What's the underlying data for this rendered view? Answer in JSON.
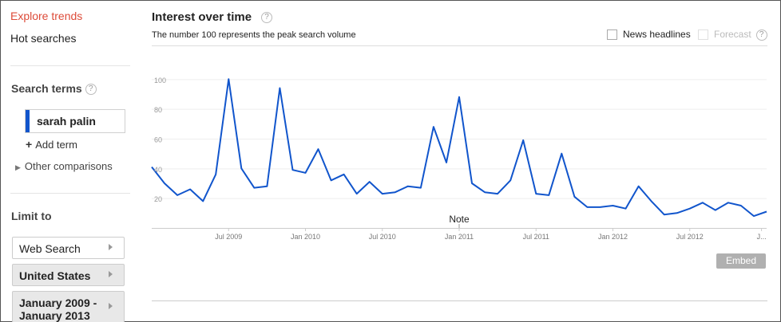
{
  "sidebar": {
    "explore_trends": "Explore trends",
    "hot_searches": "Hot searches",
    "search_terms_title": "Search terms",
    "help_mark": "?",
    "term": "sarah palin",
    "term_color": "#1155cc",
    "add_term": "Add term",
    "other_comparisons": "Other comparisons",
    "limit_to_title": "Limit to",
    "limits": [
      {
        "label": "Web Search"
      },
      {
        "label": "United States"
      },
      {
        "label": "January 2009 - January 2013"
      }
    ]
  },
  "main": {
    "title": "Interest over time",
    "help_mark": "?",
    "subtitle": "The number 100 represents the peak search volume",
    "news_headlines": "News headlines",
    "forecast": "Forecast",
    "forecast_help": "?",
    "embed": "Embed"
  },
  "chart_data": {
    "type": "line",
    "y_ticks": [
      20,
      40,
      60,
      80,
      100
    ],
    "y_tick_labels": [
      "20",
      "40",
      "60",
      "80",
      "100"
    ],
    "ylim": [
      0,
      105
    ],
    "x_tick_labels": [
      "Jul 2009",
      "Jan 2010",
      "Jul 2010",
      "Jan 2011",
      "Jul 2011",
      "Jan 2012",
      "Jul 2012",
      "J..."
    ],
    "grid": true,
    "annotation": "Note",
    "series": [
      {
        "color": "#1155cc",
        "values": [
          41,
          30,
          22,
          26,
          18,
          36,
          100,
          40,
          27,
          28,
          94,
          39,
          37,
          53,
          32,
          36,
          23,
          31,
          23,
          24,
          28,
          27,
          68,
          44,
          88,
          30,
          24,
          23,
          32,
          59,
          23,
          22,
          50,
          21,
          14,
          14,
          15,
          13,
          28,
          18,
          9,
          10,
          13,
          17,
          12,
          17,
          15,
          8,
          11
        ]
      }
    ]
  }
}
